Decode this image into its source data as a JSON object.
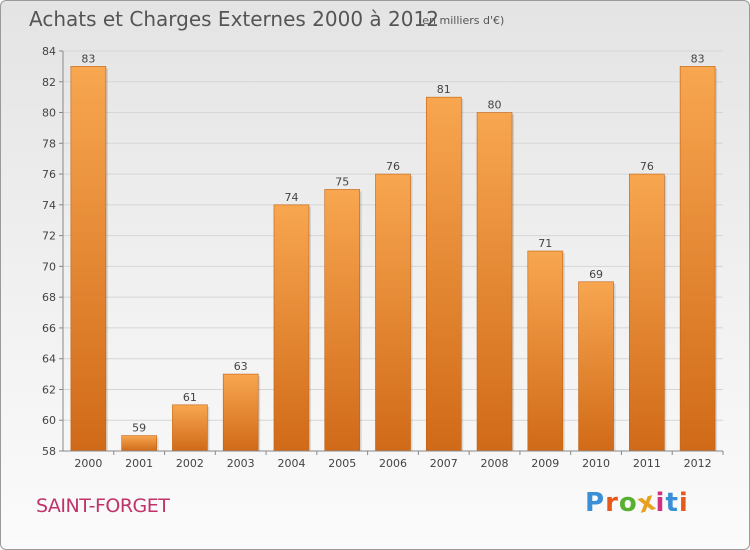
{
  "header": {
    "title": "Achats et Charges Externes 2000 à 2012",
    "subtitle": "(en milliers d'€)"
  },
  "footer": {
    "commune": "SAINT-FORGET",
    "logo": "Proxiti"
  },
  "colors": {
    "bar_light": "#f8a650",
    "bar_dark": "#d06a18",
    "commune_text": "#c0336a",
    "logo_letters": [
      "#3a8fd6",
      "#e85a1a",
      "#58b030",
      "#e8a020",
      "#d03080",
      "#3a8fd6",
      "#e85a1a"
    ]
  },
  "chart_data": {
    "type": "bar",
    "title": "Achats et Charges Externes 2000 à 2012",
    "subtitle": "(en milliers d'€)",
    "categories": [
      "2000",
      "2001",
      "2002",
      "2003",
      "2004",
      "2005",
      "2006",
      "2007",
      "2008",
      "2009",
      "2010",
      "2011",
      "2012"
    ],
    "values": [
      83,
      59,
      61,
      63,
      74,
      75,
      76,
      81,
      80,
      71,
      69,
      76,
      83
    ],
    "ylim": [
      58,
      84
    ],
    "yticks": [
      58,
      60,
      62,
      64,
      66,
      68,
      70,
      72,
      74,
      76,
      78,
      80,
      82,
      84
    ],
    "grid": true,
    "data_labels": true,
    "legend": "none"
  }
}
